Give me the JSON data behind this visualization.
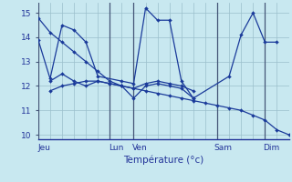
{
  "xlabel": "Température (°c)",
  "background_color": "#c8e8f0",
  "grid_color": "#9bbfcc",
  "line_color": "#1a3a9a",
  "ylim": [
    9.8,
    15.4
  ],
  "xlim": [
    0,
    21
  ],
  "yticks": [
    10,
    11,
    12,
    13,
    14,
    15
  ],
  "ytick_labels": [
    "10",
    "11",
    "12",
    "13",
    "14",
    "15"
  ],
  "xtick_positions": [
    0.5,
    6.5,
    8.5,
    15.5,
    19.5
  ],
  "xtick_labels": [
    "Jeu",
    "Lun",
    "Ven",
    "Sam",
    "Dim"
  ],
  "vlines": [
    0,
    6,
    8,
    15,
    19
  ],
  "series": [
    {
      "x": [
        0,
        1,
        2,
        3,
        4,
        5,
        6,
        7,
        8,
        9,
        10,
        11,
        12,
        13,
        14,
        15,
        16,
        17,
        18,
        19,
        20,
        21
      ],
      "y": [
        14.8,
        14.2,
        13.8,
        13.4,
        13.0,
        12.6,
        12.2,
        12.0,
        11.9,
        11.8,
        11.7,
        11.6,
        11.5,
        11.4,
        11.3,
        11.2,
        11.1,
        11.0,
        10.8,
        10.6,
        10.2,
        10.0
      ]
    },
    {
      "x": [
        0,
        1,
        2,
        3,
        4,
        5,
        7,
        8,
        9,
        10,
        11,
        12,
        13,
        16,
        17,
        18,
        19,
        20
      ],
      "y": [
        13.9,
        12.3,
        14.5,
        14.3,
        13.8,
        12.4,
        12.2,
        12.1,
        15.2,
        14.7,
        14.7,
        12.2,
        11.5,
        12.4,
        14.1,
        15.0,
        13.8,
        13.8
      ]
    },
    {
      "x": [
        1,
        2,
        3,
        4,
        5,
        6,
        7,
        8,
        9,
        10,
        11,
        12,
        13
      ],
      "y": [
        12.2,
        12.5,
        12.2,
        12.0,
        12.2,
        12.1,
        12.0,
        11.5,
        12.0,
        12.1,
        12.0,
        11.9,
        11.5
      ]
    },
    {
      "x": [
        1,
        2,
        3,
        4,
        5,
        6,
        7,
        8,
        9,
        10,
        11,
        12,
        13
      ],
      "y": [
        11.8,
        12.0,
        12.1,
        12.2,
        12.2,
        12.1,
        12.0,
        11.9,
        12.1,
        12.2,
        12.1,
        12.0,
        11.8
      ]
    }
  ]
}
